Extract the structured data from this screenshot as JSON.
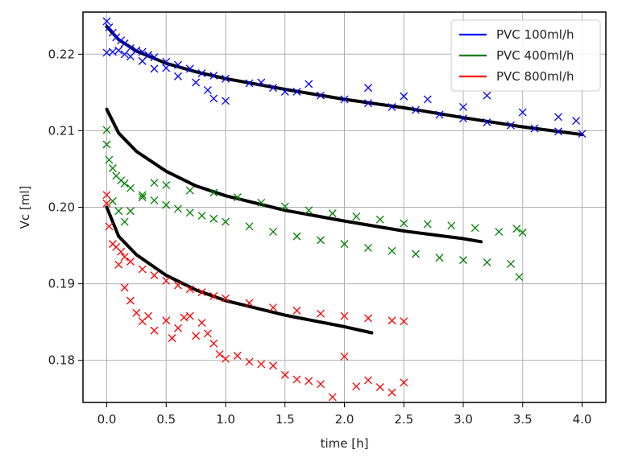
{
  "chart_data": {
    "type": "scatter",
    "xlabel": "time [h]",
    "ylabel": "Vc [ml]",
    "xlim": [
      -0.2,
      4.2
    ],
    "ylim": [
      0.1745,
      0.2255
    ],
    "x_ticks": [
      0.0,
      0.5,
      1.0,
      1.5,
      2.0,
      2.5,
      3.0,
      3.5,
      4.0
    ],
    "x_tick_labels": [
      "0.0",
      "0.5",
      "1.0",
      "1.5",
      "2.0",
      "2.5",
      "3.0",
      "3.5",
      "4.0"
    ],
    "y_ticks": [
      0.18,
      0.19,
      0.2,
      0.21,
      0.22
    ],
    "y_tick_labels": [
      "0.18",
      "0.19",
      "0.20",
      "0.21",
      "0.22"
    ],
    "grid": true,
    "legend_position": "top-right",
    "legend": [
      {
        "label": "PVC 100ml/h",
        "color": "#0000ff"
      },
      {
        "label": "PVC 400ml/h",
        "color": "#008000"
      },
      {
        "label": "PVC 800ml/h",
        "color": "#ff0000"
      }
    ],
    "fit_color": "#000000",
    "series": [
      {
        "name": "PVC 100ml/h",
        "color": "#0000ff",
        "marker": "x",
        "points": [
          [
            0.0,
            0.2243
          ],
          [
            0.02,
            0.2235
          ],
          [
            0.05,
            0.2228
          ],
          [
            0.08,
            0.2222
          ],
          [
            0.12,
            0.2218
          ],
          [
            0.15,
            0.2214
          ],
          [
            0.2,
            0.2208
          ],
          [
            0.25,
            0.2205
          ],
          [
            0.3,
            0.2203
          ],
          [
            0.35,
            0.2199
          ],
          [
            0.4,
            0.2196
          ],
          [
            0.5,
            0.219
          ],
          [
            0.6,
            0.2186
          ],
          [
            0.7,
            0.2181
          ],
          [
            0.8,
            0.2175
          ],
          [
            0.9,
            0.2172
          ],
          [
            1.0,
            0.2168
          ],
          [
            1.2,
            0.2162
          ],
          [
            1.4,
            0.2156
          ],
          [
            1.6,
            0.2151
          ],
          [
            1.8,
            0.2146
          ],
          [
            2.0,
            0.2141
          ],
          [
            2.2,
            0.2136
          ],
          [
            2.4,
            0.2131
          ],
          [
            2.6,
            0.2127
          ],
          [
            2.8,
            0.2121
          ],
          [
            3.0,
            0.2116
          ],
          [
            3.2,
            0.2111
          ],
          [
            3.4,
            0.2107
          ],
          [
            3.6,
            0.2103
          ],
          [
            3.8,
            0.2099
          ],
          [
            4.0,
            0.2096
          ],
          [
            0.0,
            0.2202
          ],
          [
            0.05,
            0.2203
          ],
          [
            0.1,
            0.2205
          ],
          [
            0.15,
            0.22
          ],
          [
            0.2,
            0.2197
          ],
          [
            0.3,
            0.2191
          ],
          [
            0.4,
            0.2181
          ],
          [
            0.5,
            0.2182
          ],
          [
            0.6,
            0.2171
          ],
          [
            0.75,
            0.2163
          ],
          [
            0.85,
            0.2153
          ],
          [
            0.9,
            0.2142
          ],
          [
            1.0,
            0.2139
          ],
          [
            1.3,
            0.2163
          ],
          [
            1.5,
            0.2151
          ],
          [
            1.7,
            0.2161
          ],
          [
            2.2,
            0.2156
          ],
          [
            2.5,
            0.2145
          ],
          [
            2.7,
            0.2141
          ],
          [
            3.0,
            0.2131
          ],
          [
            3.2,
            0.2146
          ],
          [
            3.5,
            0.2124
          ],
          [
            3.8,
            0.2118
          ],
          [
            3.95,
            0.2113
          ]
        ]
      },
      {
        "name": "PVC 400ml/h",
        "color": "#008000",
        "marker": "x",
        "points": [
          [
            0.0,
            0.2101
          ],
          [
            0.0,
            0.2082
          ],
          [
            0.02,
            0.2062
          ],
          [
            0.05,
            0.2051
          ],
          [
            0.08,
            0.2041
          ],
          [
            0.12,
            0.2035
          ],
          [
            0.15,
            0.2031
          ],
          [
            0.2,
            0.2025
          ],
          [
            0.3,
            0.2016
          ],
          [
            0.4,
            0.2009
          ],
          [
            0.5,
            0.2003
          ],
          [
            0.6,
            0.1998
          ],
          [
            0.7,
            0.1993
          ],
          [
            0.8,
            0.1989
          ],
          [
            0.9,
            0.1985
          ],
          [
            1.0,
            0.1981
          ],
          [
            1.2,
            0.1975
          ],
          [
            1.4,
            0.1968
          ],
          [
            1.6,
            0.1962
          ],
          [
            1.8,
            0.1957
          ],
          [
            2.0,
            0.1952
          ],
          [
            2.2,
            0.1947
          ],
          [
            2.4,
            0.1943
          ],
          [
            2.6,
            0.1939
          ],
          [
            2.8,
            0.1934
          ],
          [
            3.0,
            0.1931
          ],
          [
            3.2,
            0.1928
          ],
          [
            3.4,
            0.1926
          ],
          [
            3.47,
            0.1909
          ],
          [
            0.05,
            0.2008
          ],
          [
            0.1,
            0.1995
          ],
          [
            0.15,
            0.1981
          ],
          [
            0.2,
            0.1995
          ],
          [
            0.3,
            0.2013
          ],
          [
            0.4,
            0.2032
          ],
          [
            0.5,
            0.2029
          ],
          [
            0.7,
            0.2022
          ],
          [
            0.9,
            0.2019
          ],
          [
            1.1,
            0.2013
          ],
          [
            1.3,
            0.2006
          ],
          [
            1.5,
            0.2001
          ],
          [
            1.7,
            0.1996
          ],
          [
            1.9,
            0.1992
          ],
          [
            2.1,
            0.1988
          ],
          [
            2.3,
            0.1984
          ],
          [
            2.5,
            0.1979
          ],
          [
            2.7,
            0.1978
          ],
          [
            2.9,
            0.1976
          ],
          [
            3.1,
            0.1973
          ],
          [
            3.3,
            0.1968
          ],
          [
            3.45,
            0.1972
          ],
          [
            3.5,
            0.1967
          ]
        ]
      },
      {
        "name": "PVC 800ml/h",
        "color": "#ff0000",
        "marker": "x",
        "points": [
          [
            0.0,
            0.2016
          ],
          [
            0.0,
            0.2005
          ],
          [
            0.02,
            0.1975
          ],
          [
            0.05,
            0.1952
          ],
          [
            0.08,
            0.1948
          ],
          [
            0.12,
            0.1942
          ],
          [
            0.15,
            0.1935
          ],
          [
            0.2,
            0.1929
          ],
          [
            0.3,
            0.1919
          ],
          [
            0.4,
            0.1911
          ],
          [
            0.5,
            0.1904
          ],
          [
            0.6,
            0.1898
          ],
          [
            0.7,
            0.1893
          ],
          [
            0.8,
            0.1889
          ],
          [
            0.9,
            0.1884
          ],
          [
            1.0,
            0.1881
          ],
          [
            1.2,
            0.1875
          ],
          [
            1.4,
            0.1869
          ],
          [
            1.6,
            0.1865
          ],
          [
            1.8,
            0.1861
          ],
          [
            2.0,
            0.1858
          ],
          [
            2.2,
            0.1855
          ],
          [
            2.4,
            0.1852
          ],
          [
            2.5,
            0.1851
          ],
          [
            0.1,
            0.1925
          ],
          [
            0.15,
            0.1895
          ],
          [
            0.2,
            0.1878
          ],
          [
            0.25,
            0.1862
          ],
          [
            0.3,
            0.1851
          ],
          [
            0.35,
            0.1858
          ],
          [
            0.4,
            0.1839
          ],
          [
            0.5,
            0.1852
          ],
          [
            0.55,
            0.1829
          ],
          [
            0.6,
            0.1842
          ],
          [
            0.65,
            0.1856
          ],
          [
            0.7,
            0.1858
          ],
          [
            0.75,
            0.1832
          ],
          [
            0.8,
            0.1849
          ],
          [
            0.85,
            0.1835
          ],
          [
            0.9,
            0.1822
          ],
          [
            0.95,
            0.1808
          ],
          [
            1.0,
            0.1802
          ],
          [
            1.1,
            0.1806
          ],
          [
            1.2,
            0.1798
          ],
          [
            1.3,
            0.1795
          ],
          [
            1.4,
            0.1793
          ],
          [
            1.5,
            0.1781
          ],
          [
            1.6,
            0.1775
          ],
          [
            1.7,
            0.1773
          ],
          [
            1.8,
            0.1769
          ],
          [
            1.9,
            0.1752
          ],
          [
            2.0,
            0.1805
          ],
          [
            2.1,
            0.1766
          ],
          [
            2.2,
            0.1774
          ],
          [
            2.3,
            0.1765
          ],
          [
            2.4,
            0.1758
          ],
          [
            2.5,
            0.1771
          ]
        ]
      }
    ],
    "fits": [
      {
        "series": "PVC 100ml/h",
        "x_start": 0.0,
        "x_end": 4.0,
        "points": [
          [
            0.0,
            0.2236
          ],
          [
            0.1,
            0.2219
          ],
          [
            0.25,
            0.2204
          ],
          [
            0.5,
            0.2188
          ],
          [
            0.75,
            0.2177
          ],
          [
            1.0,
            0.2168
          ],
          [
            1.5,
            0.2154
          ],
          [
            2.0,
            0.2141
          ],
          [
            2.5,
            0.213
          ],
          [
            3.0,
            0.2117
          ],
          [
            3.5,
            0.2105
          ],
          [
            4.0,
            0.2095
          ]
        ]
      },
      {
        "series": "PVC 400ml/h",
        "x_start": 0.0,
        "x_end": 3.15,
        "points": [
          [
            0.0,
            0.2128
          ],
          [
            0.1,
            0.2097
          ],
          [
            0.25,
            0.2073
          ],
          [
            0.5,
            0.2047
          ],
          [
            0.75,
            0.2028
          ],
          [
            1.0,
            0.2015
          ],
          [
            1.5,
            0.1996
          ],
          [
            2.0,
            0.1982
          ],
          [
            2.5,
            0.1969
          ],
          [
            3.0,
            0.1959
          ],
          [
            3.15,
            0.1955
          ]
        ]
      },
      {
        "series": "PVC 800ml/h",
        "x_start": 0.0,
        "x_end": 2.23,
        "points": [
          [
            0.0,
            0.2
          ],
          [
            0.1,
            0.1962
          ],
          [
            0.25,
            0.1938
          ],
          [
            0.5,
            0.1911
          ],
          [
            0.75,
            0.1892
          ],
          [
            1.0,
            0.1878
          ],
          [
            1.5,
            0.1859
          ],
          [
            2.0,
            0.1844
          ],
          [
            2.23,
            0.1836
          ]
        ]
      }
    ]
  }
}
